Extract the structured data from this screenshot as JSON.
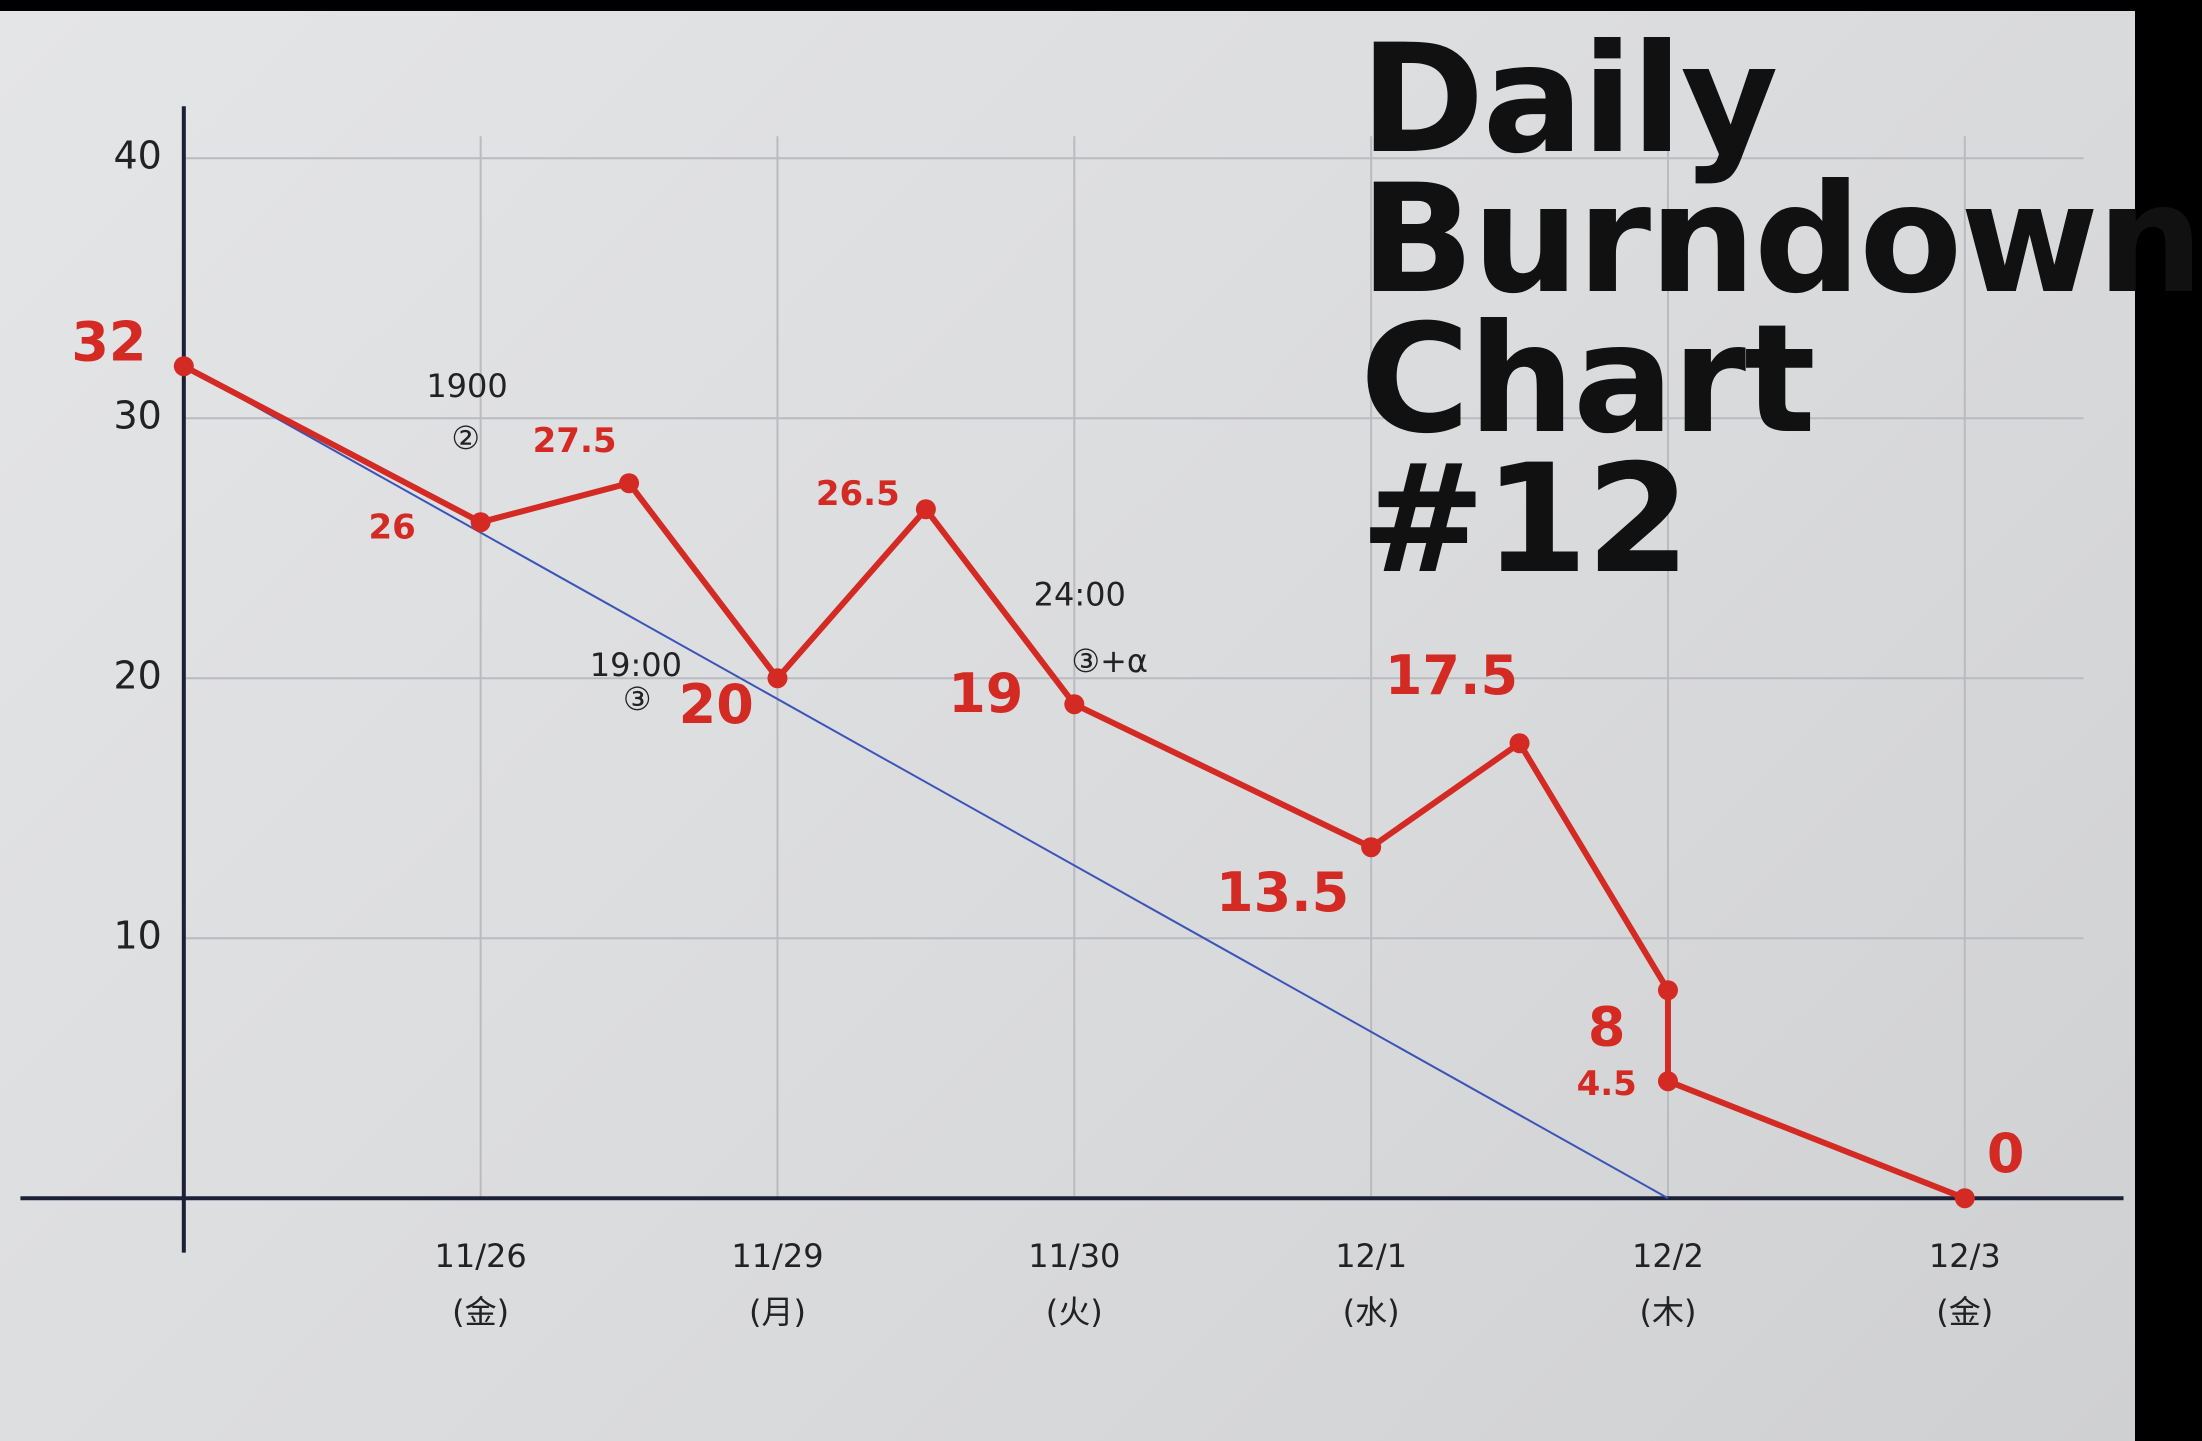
{
  "chart_data": {
    "type": "line",
    "title": "Daily Burndown Chart #12",
    "series": [
      {
        "color": "#d42a24",
        "x": [
          0,
          1,
          1.5,
          2,
          2.5,
          3,
          4,
          4.5,
          5,
          5,
          6
        ],
        "values": [
          32,
          26,
          27.5,
          20,
          26.5,
          19,
          13.5,
          17.5,
          8,
          4.5,
          0
        ]
      },
      {
        "color": "#3a55b8",
        "x": [
          0,
          5
        ],
        "values": [
          32,
          0
        ]
      }
    ],
    "annotations": [
      "1900",
      "②",
      "19:00",
      "③",
      "24:00",
      "③+α"
    ],
    "xlim": [
      0,
      6.4
    ],
    "xticks": [
      {
        "value": 1,
        "label": "11/26 (金)"
      },
      {
        "value": 2,
        "label": "11/29 (月)"
      },
      {
        "value": 3,
        "label": "11/30 (火)"
      },
      {
        "value": 4,
        "label": "12/1 (水)"
      },
      {
        "value": 5,
        "label": "12/2 (木)"
      },
      {
        "value": 6,
        "label": "12/3 (金)"
      }
    ],
    "ylim": [
      0,
      42
    ],
    "yticks": [
      10,
      20,
      30,
      40
    ],
    "grid": true
  }
}
